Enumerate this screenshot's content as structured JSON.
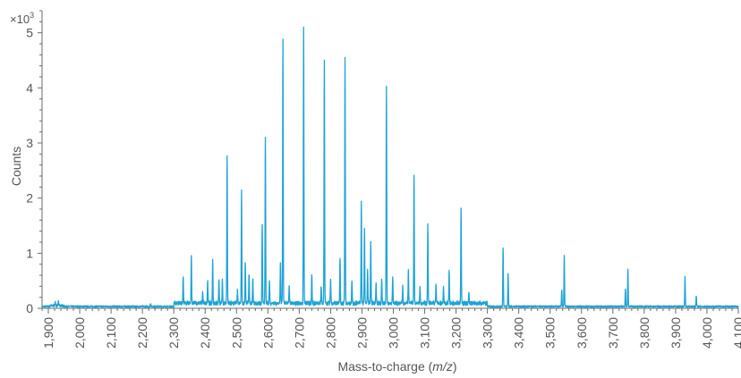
{
  "chart_data": {
    "type": "line",
    "xlabel_main": "Mass-to-charge (",
    "xlabel_italic": "m/z",
    "xlabel_end": ")",
    "ylabel": "Counts",
    "y_multiplier_base": "×10",
    "y_multiplier_exp": "3",
    "xlim": [
      1880,
      4100
    ],
    "ylim": [
      0,
      5.4
    ],
    "x_ticks": [
      1900,
      2000,
      2100,
      2200,
      2300,
      2400,
      2500,
      2600,
      2700,
      2800,
      2900,
      3000,
      3100,
      3200,
      3300,
      3400,
      3500,
      3600,
      3700,
      3800,
      3900,
      4000,
      4100
    ],
    "x_tick_labels": [
      "1,900",
      "2,000",
      "2,100",
      "2,200",
      "2,300",
      "2,400",
      "2,500",
      "2,600",
      "2,700",
      "2,800",
      "2,900",
      "3,000",
      "3,100",
      "3,200",
      "3,300",
      "3,400",
      "3,500",
      "3,600",
      "3,700",
      "3,800",
      "3,900",
      "4,000",
      "4,100"
    ],
    "y_ticks": [
      0,
      1,
      2,
      3,
      4,
      5
    ],
    "y_tick_labels": [
      "0",
      "1",
      "2",
      "3",
      "4",
      "5"
    ],
    "line_color": "#1fa3d6",
    "series": [
      {
        "peaks": [
          {
            "x": 1922,
            "y": 0.07
          },
          {
            "x": 1932,
            "y": 0.09
          },
          {
            "x": 2226,
            "y": 0.06
          },
          {
            "x": 2330,
            "y": 0.48
          },
          {
            "x": 2356,
            "y": 0.85
          },
          {
            "x": 2392,
            "y": 0.22
          },
          {
            "x": 2408,
            "y": 0.4
          },
          {
            "x": 2424,
            "y": 0.78
          },
          {
            "x": 2444,
            "y": 0.45
          },
          {
            "x": 2455,
            "y": 0.42
          },
          {
            "x": 2470,
            "y": 2.65
          },
          {
            "x": 2503,
            "y": 0.22
          },
          {
            "x": 2516,
            "y": 2.02
          },
          {
            "x": 2528,
            "y": 0.75
          },
          {
            "x": 2540,
            "y": 0.55
          },
          {
            "x": 2552,
            "y": 0.45
          },
          {
            "x": 2582,
            "y": 1.45
          },
          {
            "x": 2592,
            "y": 3.0
          },
          {
            "x": 2605,
            "y": 0.42
          },
          {
            "x": 2640,
            "y": 0.72
          },
          {
            "x": 2648,
            "y": 4.75
          },
          {
            "x": 2668,
            "y": 0.3
          },
          {
            "x": 2714,
            "y": 5.0
          },
          {
            "x": 2740,
            "y": 0.52
          },
          {
            "x": 2770,
            "y": 0.32
          },
          {
            "x": 2780,
            "y": 4.42
          },
          {
            "x": 2800,
            "y": 0.45
          },
          {
            "x": 2830,
            "y": 0.83
          },
          {
            "x": 2846,
            "y": 4.45
          },
          {
            "x": 2868,
            "y": 0.42
          },
          {
            "x": 2898,
            "y": 1.85
          },
          {
            "x": 2908,
            "y": 1.35
          },
          {
            "x": 2918,
            "y": 0.62
          },
          {
            "x": 2928,
            "y": 1.12
          },
          {
            "x": 2945,
            "y": 0.35
          },
          {
            "x": 2963,
            "y": 0.45
          },
          {
            "x": 2978,
            "y": 3.92
          },
          {
            "x": 2998,
            "y": 0.48
          },
          {
            "x": 3030,
            "y": 0.32
          },
          {
            "x": 3048,
            "y": 0.58
          },
          {
            "x": 3066,
            "y": 2.33
          },
          {
            "x": 3085,
            "y": 0.3
          },
          {
            "x": 3110,
            "y": 1.42
          },
          {
            "x": 3136,
            "y": 0.35
          },
          {
            "x": 3160,
            "y": 0.3
          },
          {
            "x": 3178,
            "y": 0.57
          },
          {
            "x": 3216,
            "y": 1.73
          },
          {
            "x": 3241,
            "y": 0.2
          },
          {
            "x": 3350,
            "y": 1.05
          },
          {
            "x": 3366,
            "y": 0.6
          },
          {
            "x": 3537,
            "y": 0.3
          },
          {
            "x": 3545,
            "y": 0.92
          },
          {
            "x": 3740,
            "y": 0.32
          },
          {
            "x": 3748,
            "y": 0.68
          },
          {
            "x": 3930,
            "y": 0.53
          },
          {
            "x": 3966,
            "y": 0.19
          }
        ]
      }
    ]
  }
}
